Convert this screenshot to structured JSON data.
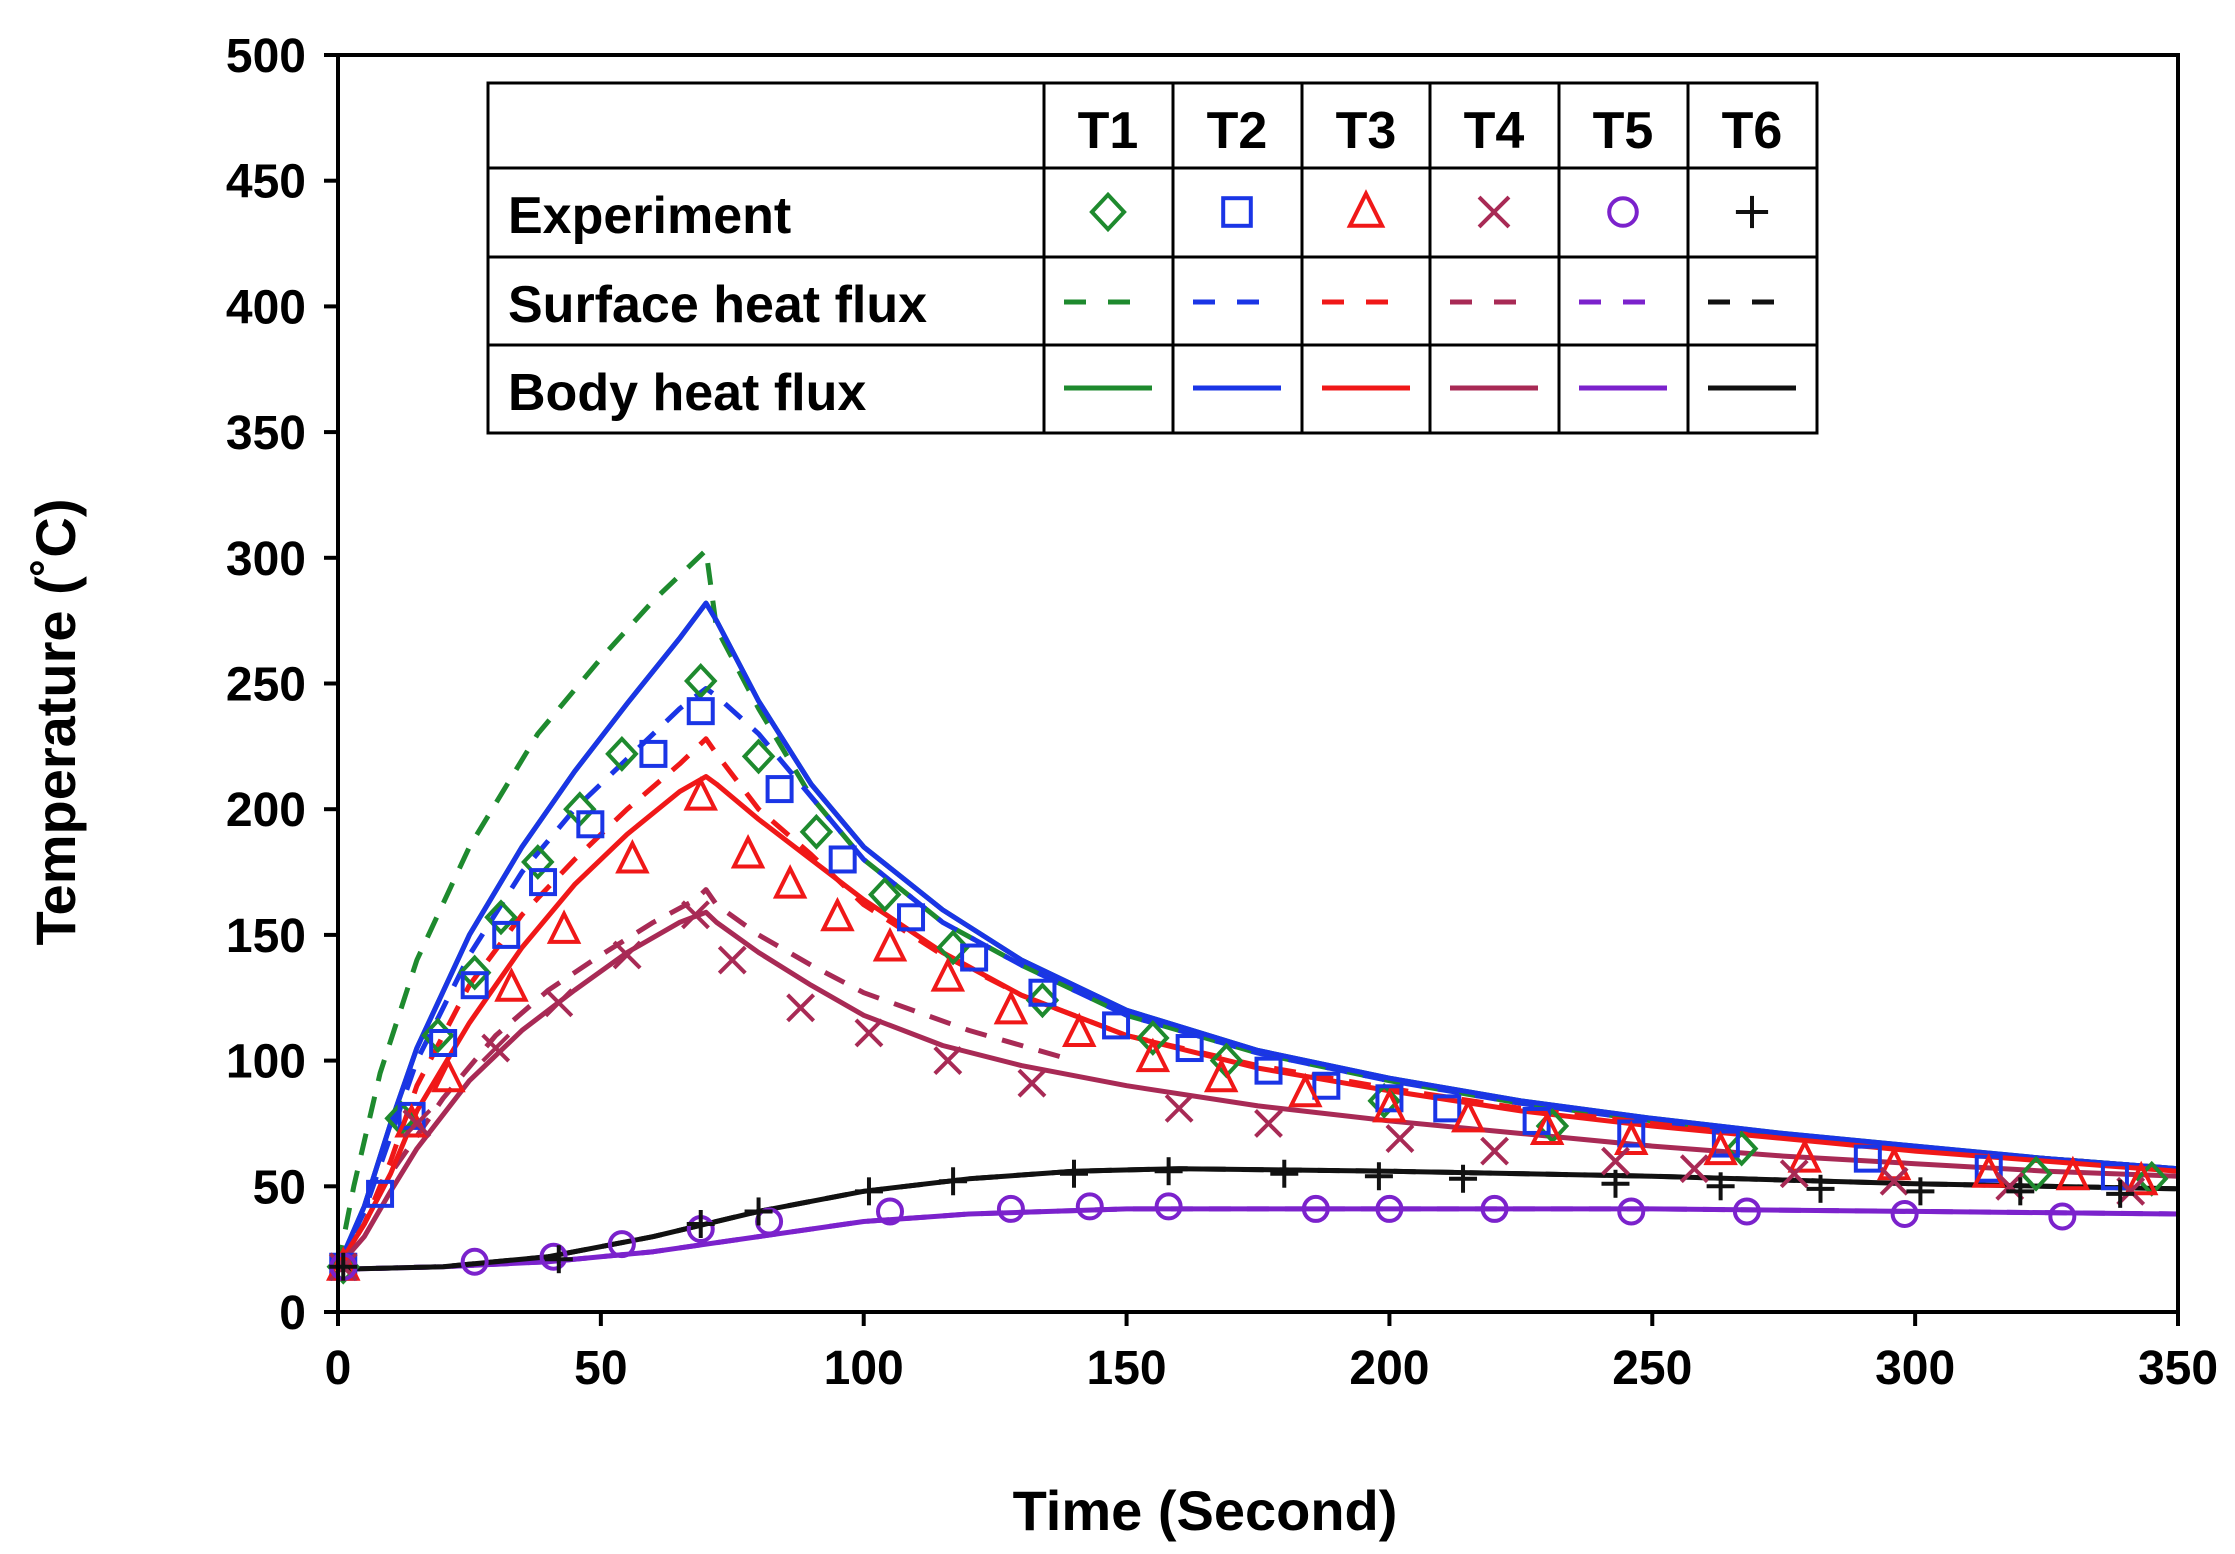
{
  "chart_data": {
    "type": "line",
    "title": "",
    "xlabel": "Time (Second)",
    "ylabel": "Temperature (˚C)",
    "xlim": [
      0,
      350
    ],
    "ylim": [
      0,
      500
    ],
    "xticks": [
      0,
      50,
      100,
      150,
      200,
      250,
      300,
      350
    ],
    "yticks": [
      0,
      50,
      100,
      150,
      200,
      250,
      300,
      350,
      400,
      450,
      500
    ],
    "grid": false,
    "legend": {
      "placement": "top-center",
      "columns": [
        "T1",
        "T2",
        "T3",
        "T4",
        "T5",
        "T6"
      ],
      "rows": [
        "Experiment",
        "Surface heat flux",
        "Body heat flux"
      ]
    },
    "colors": {
      "T1": "#1e8a2e",
      "T2": "#1a35e6",
      "T3": "#f01818",
      "T4": "#a82a55",
      "T5": "#7b22cc",
      "T6": "#111111"
    },
    "series": [
      {
        "name": "T1 Experiment",
        "probe": "T1",
        "kind": "experiment",
        "marker": "diamond",
        "x": [
          1,
          12,
          19,
          26,
          31,
          38,
          46,
          54,
          69,
          80,
          91,
          104,
          117,
          134,
          155,
          169,
          199,
          231,
          267,
          323,
          345
        ],
        "y": [
          18,
          77,
          110,
          135,
          157,
          179,
          200,
          222,
          251,
          221,
          191,
          166,
          145,
          124,
          109,
          100,
          84,
          74,
          65,
          55,
          53
        ]
      },
      {
        "name": "T2 Experiment",
        "probe": "T2",
        "kind": "experiment",
        "marker": "square",
        "x": [
          1,
          8,
          14,
          20,
          26,
          32,
          39,
          48,
          60,
          69,
          84,
          96,
          109,
          121,
          134,
          148,
          162,
          177,
          188,
          200,
          211,
          228,
          246,
          264,
          291,
          314,
          338
        ],
        "y": [
          18,
          47,
          78,
          107,
          130,
          150,
          171,
          194,
          222,
          239,
          208,
          180,
          157,
          141,
          127,
          114,
          105,
          96,
          90,
          85,
          81,
          76,
          71,
          67,
          61,
          57,
          54
        ]
      },
      {
        "name": "T3 Experiment",
        "probe": "T3",
        "kind": "experiment",
        "marker": "triangle",
        "x": [
          1,
          14,
          21,
          33,
          43,
          56,
          69,
          78,
          86,
          95,
          105,
          116,
          128,
          141,
          155,
          168,
          184,
          200,
          215,
          230,
          246,
          263,
          279,
          296,
          314,
          330,
          343
        ],
        "y": [
          18,
          75,
          93,
          129,
          152,
          180,
          205,
          182,
          170,
          157,
          145,
          133,
          120,
          111,
          101,
          93,
          87,
          81,
          77,
          72,
          68,
          64,
          61,
          58,
          55,
          54,
          52
        ]
      },
      {
        "name": "T4 Experiment",
        "probe": "T4",
        "kind": "experiment",
        "marker": "x",
        "x": [
          1,
          15,
          30,
          42,
          55,
          68,
          75,
          88,
          101,
          116,
          132,
          160,
          177,
          202,
          220,
          243,
          258,
          277,
          296,
          318,
          341
        ],
        "y": [
          18,
          75,
          105,
          123,
          142,
          158,
          140,
          121,
          111,
          100,
          91,
          81,
          75,
          69,
          64,
          60,
          57,
          55,
          52,
          50,
          48
        ]
      },
      {
        "name": "T5 Experiment",
        "probe": "T5",
        "kind": "experiment",
        "marker": "circle",
        "x": [
          1,
          26,
          41,
          54,
          69,
          82,
          105,
          128,
          143,
          158,
          186,
          200,
          220,
          246,
          268,
          298,
          328
        ],
        "y": [
          18,
          20,
          22,
          27,
          33,
          36,
          40,
          41,
          42,
          42,
          41,
          41,
          41,
          40,
          40,
          39,
          38
        ]
      },
      {
        "name": "T6 Experiment",
        "probe": "T6",
        "kind": "experiment",
        "marker": "plus",
        "x": [
          1,
          42,
          69,
          80,
          101,
          117,
          140,
          158,
          180,
          198,
          214,
          243,
          263,
          282,
          301,
          320,
          339
        ],
        "y": [
          18,
          21,
          35,
          40,
          48,
          52,
          55,
          56,
          55,
          54,
          53,
          51,
          50,
          49,
          48,
          48,
          47
        ]
      },
      {
        "name": "T1 Surface heat flux",
        "probe": "T1",
        "kind": "surface",
        "style": "dashed",
        "x": [
          0,
          3,
          8,
          15,
          25,
          38,
          50,
          60,
          70,
          72,
          80,
          90,
          100,
          115,
          130,
          150,
          175,
          200,
          225,
          250,
          275,
          300,
          325,
          350
        ],
        "y": [
          18,
          50,
          95,
          140,
          185,
          230,
          260,
          283,
          303,
          272,
          240,
          205,
          180,
          155,
          138,
          118,
          103,
          92,
          83,
          76,
          70,
          65,
          61,
          57
        ]
      },
      {
        "name": "T2 Surface heat flux",
        "probe": "T2",
        "kind": "surface",
        "style": "dashed",
        "x": [
          0,
          5,
          10,
          15,
          25,
          35,
          45,
          55,
          65,
          70,
          72,
          80,
          90,
          100,
          115,
          130,
          150,
          175,
          200,
          225,
          250,
          275,
          300,
          325,
          350
        ],
        "y": [
          18,
          40,
          70,
          100,
          142,
          175,
          200,
          220,
          240,
          248,
          245,
          230,
          205,
          180,
          155,
          138,
          118,
          103,
          92,
          83,
          76,
          70,
          65,
          61,
          57
        ]
      },
      {
        "name": "T3 Surface heat flux",
        "probe": "T3",
        "kind": "surface",
        "style": "dashed",
        "x": [
          0,
          5,
          10,
          15,
          25,
          35,
          45,
          55,
          65,
          70,
          72,
          80,
          90,
          100,
          115,
          130,
          150,
          175,
          200,
          225,
          250,
          275,
          300,
          325,
          350
        ],
        "y": [
          18,
          35,
          60,
          90,
          130,
          158,
          180,
          200,
          218,
          228,
          222,
          200,
          182,
          162,
          142,
          126,
          110,
          98,
          89,
          81,
          75,
          70,
          65,
          61,
          57
        ]
      },
      {
        "name": "T4 Surface heat flux",
        "probe": "T4",
        "kind": "surface",
        "style": "dashed",
        "x": [
          0,
          5,
          10,
          20,
          30,
          40,
          50,
          60,
          68,
          70,
          72,
          80,
          90,
          100,
          120,
          140
        ],
        "y": [
          18,
          35,
          55,
          85,
          110,
          128,
          142,
          155,
          164,
          168,
          162,
          150,
          138,
          127,
          112,
          100
        ]
      },
      {
        "name": "T5 Surface heat flux",
        "probe": "T5",
        "kind": "surface",
        "style": "dashed",
        "x": [
          0,
          20,
          40,
          60,
          80,
          100,
          120,
          150,
          200,
          250,
          300,
          350
        ],
        "y": [
          17,
          18,
          20,
          24,
          30,
          36,
          39,
          41,
          41,
          41,
          40,
          39
        ]
      },
      {
        "name": "T6 Surface heat flux",
        "probe": "T6",
        "kind": "surface",
        "style": "dashed",
        "x": [
          0,
          20,
          40,
          60,
          80,
          100,
          120,
          140,
          160,
          200,
          250,
          300,
          350
        ],
        "y": [
          17,
          18,
          22,
          30,
          40,
          48,
          53,
          56,
          57,
          56,
          54,
          51,
          49
        ]
      },
      {
        "name": "T1 Body heat flux",
        "probe": "T1",
        "kind": "body",
        "style": "solid",
        "x": [
          0,
          5,
          10,
          15,
          25,
          35,
          45,
          55,
          65,
          70,
          72,
          80,
          90,
          100,
          115,
          130,
          150,
          175,
          200,
          225,
          250,
          275,
          300,
          325,
          350
        ],
        "y": [
          18,
          42,
          75,
          105,
          150,
          185,
          215,
          242,
          268,
          282,
          275,
          243,
          210,
          185,
          160,
          140,
          120,
          104,
          93,
          84,
          77,
          71,
          66,
          61,
          57
        ]
      },
      {
        "name": "T2 Body heat flux",
        "probe": "T2",
        "kind": "body",
        "style": "solid",
        "x": [
          0,
          5,
          10,
          15,
          25,
          35,
          45,
          55,
          65,
          70,
          72,
          80,
          90,
          100,
          115,
          130,
          150,
          175,
          200,
          225,
          250,
          275,
          300,
          325,
          350
        ],
        "y": [
          18,
          42,
          75,
          105,
          150,
          185,
          215,
          242,
          268,
          282,
          275,
          243,
          210,
          185,
          160,
          140,
          120,
          104,
          93,
          84,
          77,
          71,
          66,
          61,
          57
        ]
      },
      {
        "name": "T3 Body heat flux",
        "probe": "T3",
        "kind": "body",
        "style": "solid",
        "x": [
          0,
          5,
          10,
          15,
          25,
          35,
          45,
          55,
          65,
          70,
          72,
          80,
          90,
          100,
          115,
          130,
          150,
          175,
          200,
          225,
          250,
          275,
          300,
          325,
          350
        ],
        "y": [
          18,
          35,
          55,
          80,
          115,
          145,
          170,
          190,
          207,
          213,
          210,
          196,
          180,
          164,
          143,
          126,
          110,
          97,
          88,
          80,
          74,
          69,
          64,
          60,
          56
        ]
      },
      {
        "name": "T4 Body heat flux",
        "probe": "T4",
        "kind": "body",
        "style": "solid",
        "x": [
          0,
          5,
          10,
          15,
          25,
          35,
          45,
          55,
          65,
          70,
          72,
          80,
          90,
          100,
          115,
          130,
          150,
          175,
          200,
          225,
          250,
          275,
          300,
          325,
          350
        ],
        "y": [
          18,
          30,
          48,
          65,
          92,
          112,
          128,
          143,
          155,
          159,
          155,
          143,
          130,
          118,
          106,
          98,
          90,
          82,
          76,
          71,
          66,
          62,
          59,
          56,
          54
        ]
      },
      {
        "name": "T5 Body heat flux",
        "probe": "T5",
        "kind": "body",
        "style": "solid",
        "x": [
          0,
          20,
          40,
          60,
          80,
          100,
          120,
          150,
          200,
          250,
          300,
          350
        ],
        "y": [
          17,
          18,
          20,
          24,
          30,
          36,
          39,
          41,
          41,
          41,
          40,
          39
        ]
      },
      {
        "name": "T6 Body heat flux",
        "probe": "T6",
        "kind": "body",
        "style": "solid",
        "x": [
          0,
          20,
          40,
          60,
          80,
          100,
          120,
          140,
          160,
          200,
          250,
          300,
          350
        ],
        "y": [
          17,
          18,
          22,
          30,
          40,
          48,
          53,
          56,
          57,
          56,
          54,
          51,
          49
        ]
      }
    ]
  }
}
